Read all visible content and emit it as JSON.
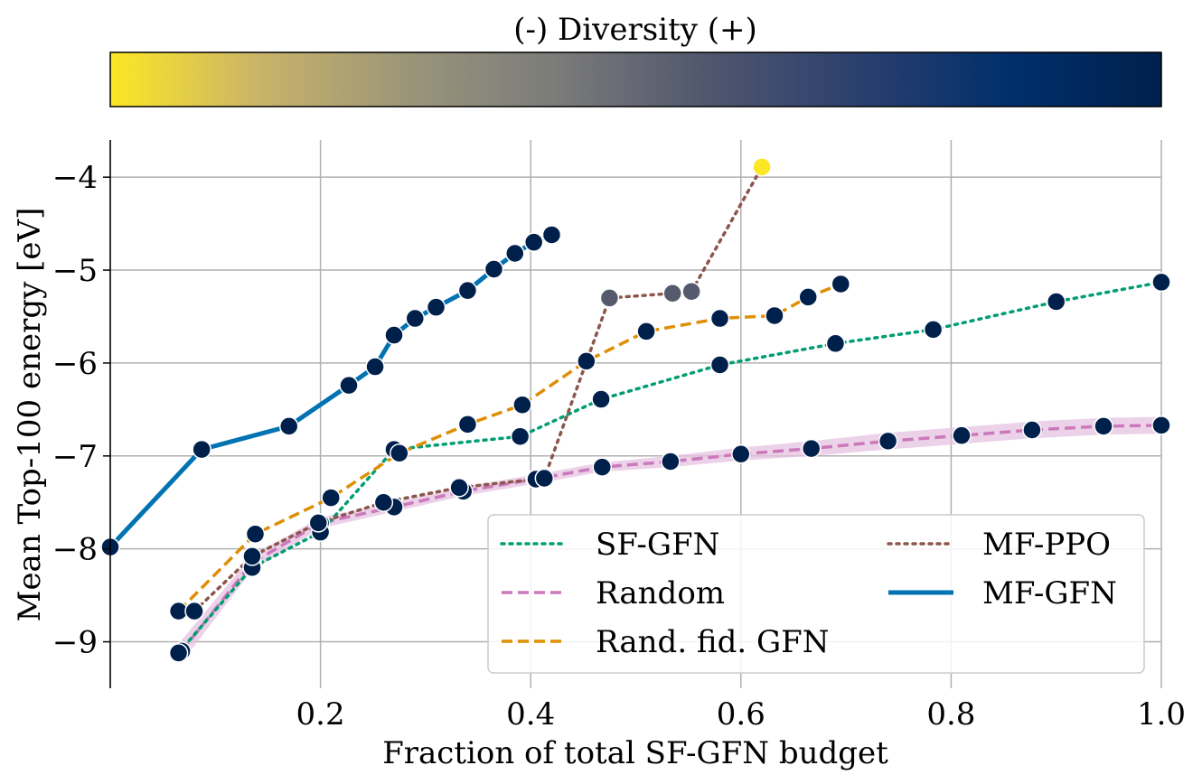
{
  "chart_data": {
    "type": "line",
    "colorbar_label": "(-) Diversity (+)",
    "colorbar_colors": [
      "#fde725",
      "#c9b36a",
      "#9a9579",
      "#7a7a7a",
      "#4f566d",
      "#2a3f6e",
      "#002f6c",
      "#00204c"
    ],
    "xlabel": "Fraction of total SF-GFN budget",
    "ylabel": "Mean Top-100 energy [eV]",
    "xlim": [
      0.0,
      1.0
    ],
    "ylim": [
      -9.5,
      -3.6
    ],
    "x_ticks": [
      0.2,
      0.4,
      0.6,
      0.8,
      1.0
    ],
    "x_tick_labels": [
      "0.2",
      "0.4",
      "0.6",
      "0.8",
      "1.0"
    ],
    "y_ticks": [
      -9,
      -8,
      -7,
      -6,
      -5,
      -4
    ],
    "y_tick_labels": [
      "−9",
      "−8",
      "−7",
      "−6",
      "−5",
      "−4"
    ],
    "grid": true,
    "legend_position": "lower-right",
    "series": [
      {
        "name": "Random",
        "color": "#cc78bc",
        "dash": "dashed",
        "band_color": "#e6c3e2",
        "x": [
          0.068,
          0.135,
          0.2,
          0.27,
          0.336,
          0.404,
          0.468,
          0.533,
          0.6,
          0.667,
          0.74,
          0.81,
          0.877,
          0.945,
          1.0
        ],
        "y": [
          -9.1,
          -8.15,
          -7.72,
          -7.55,
          -7.38,
          -7.25,
          -7.12,
          -7.06,
          -6.98,
          -6.92,
          -6.84,
          -6.78,
          -6.72,
          -6.68,
          -6.67
        ],
        "band": [
          0.12,
          0.08,
          0.06,
          0.05,
          0.05,
          0.05,
          0.05,
          0.06,
          0.07,
          0.08,
          0.09,
          0.09,
          0.09,
          0.09,
          0.09
        ],
        "point_colors": [
          "#00204c",
          "#00204c",
          "#00204c",
          "#00204c",
          "#00204c",
          "#00204c",
          "#00204c",
          "#00204c",
          "#00204c",
          "#00204c",
          "#00204c",
          "#00204c",
          "#00204c",
          "#00204c",
          "#00204c"
        ]
      },
      {
        "name": "SF-GFN",
        "color": "#029e73",
        "dash": "dotted",
        "x": [
          0.065,
          0.135,
          0.2,
          0.27,
          0.39,
          0.467,
          0.58,
          0.69,
          0.783,
          0.9,
          1.0
        ],
        "y": [
          -9.12,
          -8.2,
          -7.82,
          -6.93,
          -6.79,
          -6.39,
          -6.02,
          -5.79,
          -5.64,
          -5.34,
          -5.13
        ],
        "point_colors": [
          "#00204c",
          "#00204c",
          "#00204c",
          "#00204c",
          "#00204c",
          "#00204c",
          "#00204c",
          "#00204c",
          "#00204c",
          "#00204c",
          "#00204c"
        ]
      },
      {
        "name": "Rand. fid. GFN",
        "color": "#de8f05",
        "dash": "dashed",
        "x": [
          0.065,
          0.138,
          0.21,
          0.275,
          0.34,
          0.392,
          0.453,
          0.51,
          0.58,
          0.632,
          0.664,
          0.695
        ],
        "y": [
          -8.67,
          -7.84,
          -7.45,
          -6.97,
          -6.66,
          -6.45,
          -5.98,
          -5.66,
          -5.52,
          -5.49,
          -5.29,
          -5.15
        ],
        "point_colors": [
          "#00204c",
          "#00204c",
          "#00204c",
          "#00204c",
          "#00204c",
          "#00204c",
          "#00204c",
          "#00204c",
          "#00204c",
          "#00204c",
          "#00204c",
          "#00204c"
        ]
      },
      {
        "name": "MF-PPO",
        "color": "#8c564b",
        "dash": "dotted",
        "x": [
          0.08,
          0.135,
          0.198,
          0.26,
          0.332,
          0.405,
          0.413,
          0.475,
          0.535,
          0.553,
          0.62
        ],
        "y": [
          -8.67,
          -8.08,
          -7.72,
          -7.5,
          -7.34,
          -7.25,
          -7.24,
          -5.3,
          -5.25,
          -5.23,
          -3.89
        ],
        "point_colors": [
          "#00204c",
          "#00204c",
          "#00204c",
          "#00204c",
          "#00204c",
          "#00204c",
          "#00204c",
          "#555a6d",
          "#555a6d",
          "#555a6d",
          "#fde725"
        ]
      },
      {
        "name": "MF-GFN",
        "color": "#0173b2",
        "dash": "solid",
        "x": [
          0.0,
          0.087,
          0.17,
          0.227,
          0.252,
          0.27,
          0.29,
          0.31,
          0.34,
          0.365,
          0.385,
          0.403,
          0.42
        ],
        "y": [
          -7.98,
          -6.93,
          -6.68,
          -6.24,
          -6.04,
          -5.7,
          -5.52,
          -5.4,
          -5.22,
          -4.99,
          -4.82,
          -4.7,
          -4.62
        ],
        "point_colors": [
          "#00204c",
          "#00204c",
          "#00204c",
          "#00204c",
          "#00204c",
          "#00204c",
          "#00204c",
          "#00204c",
          "#00204c",
          "#00204c",
          "#00204c",
          "#00204c",
          "#00204c"
        ]
      }
    ],
    "legend": [
      {
        "name": "SF-GFN",
        "color": "#029e73",
        "dash": "dotted"
      },
      {
        "name": "Random",
        "color": "#cc78bc",
        "dash": "dashed"
      },
      {
        "name": "Rand. fid. GFN",
        "color": "#de8f05",
        "dash": "dashed"
      },
      {
        "name": "MF-PPO",
        "color": "#8c564b",
        "dash": "dotted"
      },
      {
        "name": "MF-GFN",
        "color": "#0173b2",
        "dash": "solid"
      }
    ]
  }
}
